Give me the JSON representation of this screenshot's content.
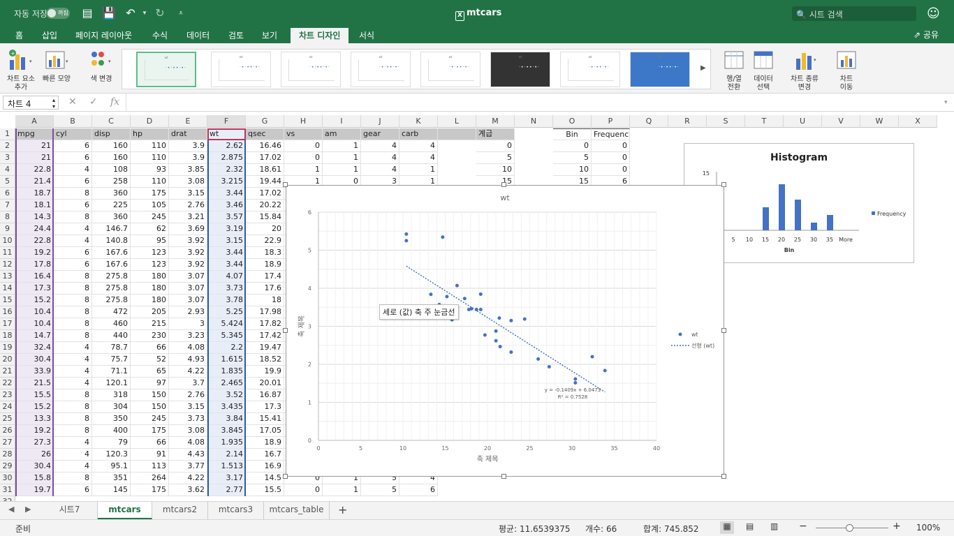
{
  "titlebar": {
    "autosave": "자동 저장",
    "toggle": "꺼짐",
    "title": "mtcars",
    "search_placeholder": "시트 검색"
  },
  "tabs": [
    "홈",
    "삽입",
    "페이지 레이아웃",
    "수식",
    "데이터",
    "검토",
    "보기",
    "차트 디자인",
    "서식"
  ],
  "active_tab": "차트 디자인",
  "share": "공유",
  "ribbon": {
    "add_element": "차트 요소\n추가",
    "quick_layout": "빠른 모양",
    "change_colors": "색 변경",
    "switch_rowcol": "행/열\n전환",
    "select_data": "데이터\n선택",
    "change_type": "차트 종류\n변경",
    "move_chart": "차트\n이동"
  },
  "namebox": "차트 4",
  "columns": [
    "A",
    "B",
    "C",
    "D",
    "E",
    "F",
    "G",
    "H",
    "I",
    "J",
    "K",
    "L",
    "M",
    "N",
    "O",
    "P",
    "Q",
    "R",
    "S",
    "T",
    "U",
    "V",
    "W",
    "X"
  ],
  "headers": [
    "mpg",
    "cyl",
    "disp",
    "hp",
    "drat",
    "wt",
    "qsec",
    "vs",
    "am",
    "gear",
    "carb"
  ],
  "rows": [
    [
      "21",
      "6",
      "160",
      "110",
      "3.9",
      "2.62",
      "16.46",
      "0",
      "1",
      "4",
      "4"
    ],
    [
      "21",
      "6",
      "160",
      "110",
      "3.9",
      "2.875",
      "17.02",
      "0",
      "1",
      "4",
      "4"
    ],
    [
      "22.8",
      "4",
      "108",
      "93",
      "3.85",
      "2.32",
      "18.61",
      "1",
      "1",
      "4",
      "1"
    ],
    [
      "21.4",
      "6",
      "258",
      "110",
      "3.08",
      "3.215",
      "19.44",
      "1",
      "0",
      "3",
      "1"
    ],
    [
      "18.7",
      "8",
      "360",
      "175",
      "3.15",
      "3.44",
      "17.02",
      "",
      "",
      "",
      ""
    ],
    [
      "18.1",
      "6",
      "225",
      "105",
      "2.76",
      "3.46",
      "20.22",
      "",
      "",
      "",
      ""
    ],
    [
      "14.3",
      "8",
      "360",
      "245",
      "3.21",
      "3.57",
      "15.84",
      "",
      "",
      "",
      ""
    ],
    [
      "24.4",
      "4",
      "146.7",
      "62",
      "3.69",
      "3.19",
      "20",
      "",
      "",
      "",
      ""
    ],
    [
      "22.8",
      "4",
      "140.8",
      "95",
      "3.92",
      "3.15",
      "22.9",
      "",
      "",
      "",
      ""
    ],
    [
      "19.2",
      "6",
      "167.6",
      "123",
      "3.92",
      "3.44",
      "18.3",
      "",
      "",
      "",
      ""
    ],
    [
      "17.8",
      "6",
      "167.6",
      "123",
      "3.92",
      "3.44",
      "18.9",
      "",
      "",
      "",
      ""
    ],
    [
      "16.4",
      "8",
      "275.8",
      "180",
      "3.07",
      "4.07",
      "17.4",
      "",
      "",
      "",
      ""
    ],
    [
      "17.3",
      "8",
      "275.8",
      "180",
      "3.07",
      "3.73",
      "17.6",
      "",
      "",
      "",
      ""
    ],
    [
      "15.2",
      "8",
      "275.8",
      "180",
      "3.07",
      "3.78",
      "18",
      "",
      "",
      "",
      ""
    ],
    [
      "10.4",
      "8",
      "472",
      "205",
      "2.93",
      "5.25",
      "17.98",
      "",
      "",
      "",
      ""
    ],
    [
      "10.4",
      "8",
      "460",
      "215",
      "3",
      "5.424",
      "17.82",
      "",
      "",
      "",
      ""
    ],
    [
      "14.7",
      "8",
      "440",
      "230",
      "3.23",
      "5.345",
      "17.42",
      "",
      "",
      "",
      ""
    ],
    [
      "32.4",
      "4",
      "78.7",
      "66",
      "4.08",
      "2.2",
      "19.47",
      "",
      "",
      "",
      ""
    ],
    [
      "30.4",
      "4",
      "75.7",
      "52",
      "4.93",
      "1.615",
      "18.52",
      "",
      "",
      "",
      ""
    ],
    [
      "33.9",
      "4",
      "71.1",
      "65",
      "4.22",
      "1.835",
      "19.9",
      "",
      "",
      "",
      ""
    ],
    [
      "21.5",
      "4",
      "120.1",
      "97",
      "3.7",
      "2.465",
      "20.01",
      "",
      "",
      "",
      ""
    ],
    [
      "15.5",
      "8",
      "318",
      "150",
      "2.76",
      "3.52",
      "16.87",
      "",
      "",
      "",
      ""
    ],
    [
      "15.2",
      "8",
      "304",
      "150",
      "3.15",
      "3.435",
      "17.3",
      "",
      "",
      "",
      ""
    ],
    [
      "13.3",
      "8",
      "350",
      "245",
      "3.73",
      "3.84",
      "15.41",
      "",
      "",
      "",
      ""
    ],
    [
      "19.2",
      "8",
      "400",
      "175",
      "3.08",
      "3.845",
      "17.05",
      "",
      "",
      "",
      ""
    ],
    [
      "27.3",
      "4",
      "79",
      "66",
      "4.08",
      "1.935",
      "18.9",
      "",
      "",
      "",
      ""
    ],
    [
      "26",
      "4",
      "120.3",
      "91",
      "4.43",
      "2.14",
      "16.7",
      "",
      "",
      "",
      ""
    ],
    [
      "30.4",
      "4",
      "95.1",
      "113",
      "3.77",
      "1.513",
      "16.9",
      "",
      "",
      "",
      ""
    ],
    [
      "15.8",
      "8",
      "351",
      "264",
      "4.22",
      "3.17",
      "14.5",
      "0",
      "1",
      "5",
      "4"
    ],
    [
      "19.7",
      "6",
      "145",
      "175",
      "3.62",
      "2.77",
      "15.5",
      "0",
      "1",
      "5",
      "6"
    ]
  ],
  "col_m": {
    "header": "계급",
    "values": [
      "0",
      "5",
      "10",
      "15"
    ]
  },
  "bins": {
    "header_bin": "Bin",
    "header_freq": "Frequency",
    "bin": [
      "0",
      "5",
      "10",
      "15"
    ],
    "freq": [
      "0",
      "0",
      "0",
      "6"
    ]
  },
  "tooltip": "세로 (값) 축 주 눈금선",
  "chart_data": [
    {
      "type": "scatter",
      "title": "wt",
      "xlabel": "축 제목",
      "ylabel": "축 제목",
      "xlim": [
        0,
        40
      ],
      "ylim": [
        0,
        6
      ],
      "legend": [
        "wt",
        "선형 (wt)"
      ],
      "trendline": {
        "equation": "y = -0.1409x + 6.0473",
        "r2": "R² = 0.7528",
        "slope": -0.1409,
        "intercept": 6.0473
      },
      "x": [
        21,
        21,
        22.8,
        21.4,
        18.7,
        18.1,
        14.3,
        24.4,
        22.8,
        19.2,
        17.8,
        16.4,
        17.3,
        15.2,
        10.4,
        10.4,
        14.7,
        32.4,
        30.4,
        33.9,
        21.5,
        15.5,
        15.2,
        13.3,
        19.2,
        27.3,
        26,
        30.4,
        15.8,
        19.7
      ],
      "y": [
        2.62,
        2.875,
        2.32,
        3.215,
        3.44,
        3.46,
        3.57,
        3.19,
        3.15,
        3.44,
        3.44,
        4.07,
        3.73,
        3.78,
        5.25,
        5.424,
        5.345,
        2.2,
        1.615,
        1.835,
        2.465,
        3.52,
        3.435,
        3.84,
        3.845,
        1.935,
        2.14,
        1.513,
        3.17,
        2.77
      ]
    },
    {
      "type": "bar",
      "title": "Histogram",
      "xlabel": "Bin",
      "categories": [
        "5",
        "10",
        "15",
        "20",
        "25",
        "30",
        "35",
        "More"
      ],
      "values": [
        0,
        0,
        6,
        12,
        8,
        2,
        4,
        0
      ],
      "legend": "Frequency",
      "ytick": "15"
    }
  ],
  "sheets": [
    "시트7",
    "mtcars",
    "mtcars2",
    "mtcars3",
    "mtcars_table"
  ],
  "active_sheet": "mtcars",
  "status": {
    "ready": "준비",
    "average": "평균: 11.6539375",
    "count": "개수: 66",
    "sum": "합계: 745.852",
    "zoom": "100%"
  }
}
